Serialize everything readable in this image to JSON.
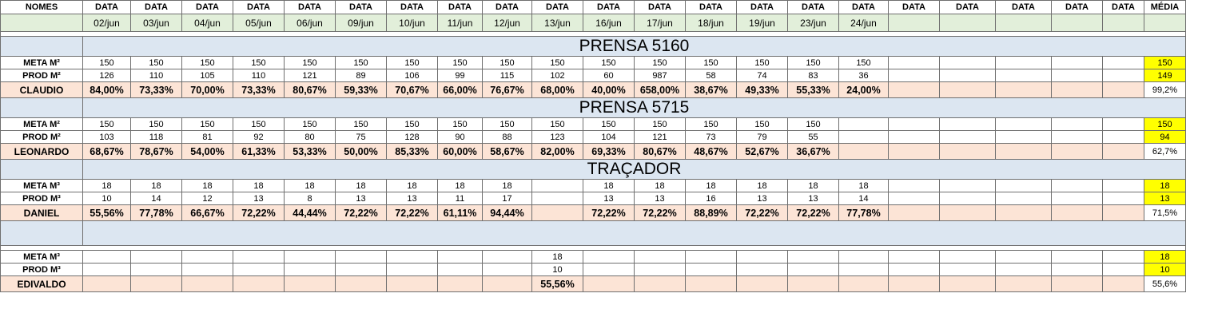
{
  "header": {
    "names_label": "NOMES",
    "data_label": "DATA",
    "media_label": "MÉDIA",
    "dates": [
      "02/jun",
      "03/jun",
      "04/jun",
      "05/jun",
      "06/jun",
      "09/jun",
      "10/jun",
      "11/jun",
      "12/jun",
      "13/jun",
      "16/jun",
      "17/jun",
      "18/jun",
      "19/jun",
      "23/jun",
      "24/jun",
      "",
      "",
      "",
      "",
      ""
    ]
  },
  "sections": [
    {
      "title": "PRENSA 5160",
      "rows": [
        {
          "label": "META M²",
          "type": "meta",
          "values": [
            "150",
            "150",
            "150",
            "150",
            "150",
            "150",
            "150",
            "150",
            "150",
            "150",
            "150",
            "150",
            "150",
            "150",
            "150",
            "150",
            "",
            "",
            "",
            "",
            ""
          ],
          "avg": "150"
        },
        {
          "label": "PROD M²",
          "type": "prod",
          "values": [
            "126",
            "110",
            "105",
            "110",
            "121",
            "89",
            "106",
            "99",
            "115",
            "102",
            "60",
            "987",
            "58",
            "74",
            "83",
            "36",
            "",
            "",
            "",
            "",
            ""
          ],
          "avg": "149"
        },
        {
          "label": "CLAUDIO",
          "type": "pct",
          "values": [
            "84,00%",
            "73,33%",
            "70,00%",
            "73,33%",
            "80,67%",
            "59,33%",
            "70,67%",
            "66,00%",
            "76,67%",
            "68,00%",
            "40,00%",
            "658,00%",
            "38,67%",
            "49,33%",
            "55,33%",
            "24,00%",
            "",
            "",
            "",
            "",
            ""
          ],
          "avg": "99,2%"
        }
      ]
    },
    {
      "title": "PRENSA 5715",
      "rows": [
        {
          "label": "META M²",
          "type": "meta",
          "values": [
            "150",
            "150",
            "150",
            "150",
            "150",
            "150",
            "150",
            "150",
            "150",
            "150",
            "150",
            "150",
            "150",
            "150",
            "150",
            "",
            "",
            "",
            "",
            "",
            ""
          ],
          "avg": "150"
        },
        {
          "label": "PROD M²",
          "type": "prod",
          "values": [
            "103",
            "118",
            "81",
            "92",
            "80",
            "75",
            "128",
            "90",
            "88",
            "123",
            "104",
            "121",
            "73",
            "79",
            "55",
            "",
            "",
            "",
            "",
            "",
            ""
          ],
          "avg": "94"
        },
        {
          "label": "LEONARDO",
          "type": "pct",
          "values": [
            "68,67%",
            "78,67%",
            "54,00%",
            "61,33%",
            "53,33%",
            "50,00%",
            "85,33%",
            "60,00%",
            "58,67%",
            "82,00%",
            "69,33%",
            "80,67%",
            "48,67%",
            "52,67%",
            "36,67%",
            "",
            "",
            "",
            "",
            "",
            ""
          ],
          "avg": "62,7%"
        }
      ]
    },
    {
      "title": "TRAÇADOR",
      "rows": [
        {
          "label": "META M³",
          "type": "meta",
          "values": [
            "18",
            "18",
            "18",
            "18",
            "18",
            "18",
            "18",
            "18",
            "18",
            "",
            "18",
            "18",
            "18",
            "18",
            "18",
            "18",
            "",
            "",
            "",
            "",
            ""
          ],
          "avg": "18"
        },
        {
          "label": "PROD M³",
          "type": "prod",
          "values": [
            "10",
            "14",
            "12",
            "13",
            "8",
            "13",
            "13",
            "11",
            "17",
            "",
            "13",
            "13",
            "16",
            "13",
            "13",
            "14",
            "",
            "",
            "",
            "",
            ""
          ],
          "avg": "13"
        },
        {
          "label": "DANIEL",
          "type": "pct",
          "values": [
            "55,56%",
            "77,78%",
            "66,67%",
            "72,22%",
            "44,44%",
            "72,22%",
            "72,22%",
            "61,11%",
            "94,44%",
            "",
            "72,22%",
            "72,22%",
            "88,89%",
            "72,22%",
            "72,22%",
            "77,78%",
            "",
            "",
            "",
            "",
            ""
          ],
          "avg": "71,5%"
        }
      ]
    },
    {
      "title": "",
      "rows": [
        {
          "label": "META M³",
          "type": "meta",
          "values": [
            "",
            "",
            "",
            "",
            "",
            "",
            "",
            "",
            "",
            "18",
            "",
            "",
            "",
            "",
            "",
            "",
            "",
            "",
            "",
            "",
            ""
          ],
          "avg": "18"
        },
        {
          "label": "PROD M³",
          "type": "prod",
          "values": [
            "",
            "",
            "",
            "",
            "",
            "",
            "",
            "",
            "",
            "10",
            "",
            "",
            "",
            "",
            "",
            "",
            "",
            "",
            "",
            "",
            ""
          ],
          "avg": "10"
        },
        {
          "label": "EDIVALDO",
          "type": "pct",
          "values": [
            "",
            "",
            "",
            "",
            "",
            "",
            "",
            "",
            "",
            "55,56%",
            "",
            "",
            "",
            "",
            "",
            "",
            "",
            "",
            "",
            "",
            ""
          ],
          "avg": "55,6%"
        }
      ]
    }
  ]
}
